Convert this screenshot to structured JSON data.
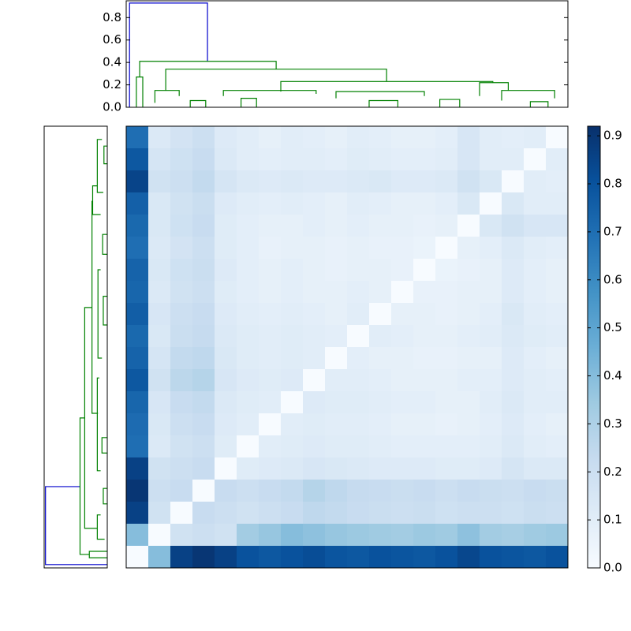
{
  "chart_data": {
    "type": "clustermap",
    "colormap": [
      "#f7fbff",
      "#deebf7",
      "#c6dbef",
      "#9ecae1",
      "#6baed6",
      "#4292c6",
      "#2171b5",
      "#08519c",
      "#08306b"
    ],
    "clim": [
      0,
      0.92
    ],
    "colorbar_ticks": [
      {
        "value": 0,
        "label": "0.0"
      },
      {
        "value": 0.1,
        "label": "0.1"
      },
      {
        "value": 0.2,
        "label": "0.2"
      },
      {
        "value": 0.3,
        "label": "0.3"
      },
      {
        "value": 0.4,
        "label": "0.4"
      },
      {
        "value": 0.5,
        "label": "0.5"
      },
      {
        "value": 0.6,
        "label": "0.6"
      },
      {
        "value": 0.7,
        "label": "0.7"
      },
      {
        "value": 0.8,
        "label": "0.8"
      },
      {
        "value": 0.9,
        "label": "0.9"
      }
    ],
    "matrix": [
      [
        0.7,
        0.13,
        0.17,
        0.2,
        0.12,
        0.1,
        0.08,
        0.1,
        0.09,
        0.08,
        0.1,
        0.09,
        0.08,
        0.08,
        0.09,
        0.15,
        0.1,
        0.09,
        0.1,
        0.0
      ],
      [
        0.78,
        0.16,
        0.19,
        0.22,
        0.13,
        0.1,
        0.09,
        0.1,
        0.1,
        0.09,
        0.11,
        0.1,
        0.09,
        0.09,
        0.1,
        0.15,
        0.1,
        0.1,
        0.0,
        0.1
      ],
      [
        0.85,
        0.18,
        0.2,
        0.24,
        0.16,
        0.13,
        0.12,
        0.13,
        0.12,
        0.12,
        0.13,
        0.14,
        0.12,
        0.12,
        0.13,
        0.18,
        0.14,
        0.0,
        0.1,
        0.09
      ],
      [
        0.75,
        0.14,
        0.18,
        0.21,
        0.12,
        0.1,
        0.09,
        0.1,
        0.09,
        0.08,
        0.1,
        0.09,
        0.08,
        0.08,
        0.09,
        0.14,
        0.0,
        0.14,
        0.1,
        0.1
      ],
      [
        0.72,
        0.14,
        0.19,
        0.22,
        0.11,
        0.09,
        0.08,
        0.08,
        0.09,
        0.08,
        0.09,
        0.08,
        0.08,
        0.07,
        0.08,
        0.0,
        0.14,
        0.18,
        0.15,
        0.15
      ],
      [
        0.7,
        0.13,
        0.17,
        0.2,
        0.11,
        0.09,
        0.07,
        0.08,
        0.08,
        0.07,
        0.08,
        0.07,
        0.07,
        0.06,
        0.0,
        0.08,
        0.09,
        0.13,
        0.1,
        0.09
      ],
      [
        0.74,
        0.14,
        0.19,
        0.21,
        0.12,
        0.09,
        0.08,
        0.09,
        0.08,
        0.07,
        0.08,
        0.08,
        0.07,
        0.0,
        0.06,
        0.07,
        0.08,
        0.12,
        0.09,
        0.08
      ],
      [
        0.73,
        0.13,
        0.18,
        0.2,
        0.11,
        0.09,
        0.08,
        0.09,
        0.08,
        0.08,
        0.09,
        0.08,
        0.0,
        0.07,
        0.07,
        0.08,
        0.08,
        0.12,
        0.09,
        0.08
      ],
      [
        0.76,
        0.15,
        0.2,
        0.22,
        0.12,
        0.1,
        0.09,
        0.1,
        0.09,
        0.08,
        0.1,
        0.0,
        0.08,
        0.08,
        0.07,
        0.08,
        0.09,
        0.14,
        0.1,
        0.09
      ],
      [
        0.72,
        0.14,
        0.21,
        0.23,
        0.13,
        0.11,
        0.1,
        0.11,
        0.1,
        0.09,
        0.0,
        0.1,
        0.09,
        0.08,
        0.08,
        0.09,
        0.1,
        0.13,
        0.11,
        0.1
      ],
      [
        0.74,
        0.16,
        0.24,
        0.25,
        0.14,
        0.11,
        0.1,
        0.11,
        0.1,
        0.0,
        0.09,
        0.08,
        0.08,
        0.07,
        0.07,
        0.08,
        0.08,
        0.12,
        0.09,
        0.08
      ],
      [
        0.78,
        0.18,
        0.26,
        0.28,
        0.15,
        0.12,
        0.11,
        0.12,
        0.0,
        0.1,
        0.1,
        0.09,
        0.08,
        0.08,
        0.08,
        0.09,
        0.09,
        0.12,
        0.1,
        0.09
      ],
      [
        0.73,
        0.15,
        0.22,
        0.24,
        0.13,
        0.11,
        0.1,
        0.0,
        0.12,
        0.11,
        0.11,
        0.1,
        0.09,
        0.09,
        0.08,
        0.08,
        0.1,
        0.13,
        0.1,
        0.1
      ],
      [
        0.71,
        0.14,
        0.2,
        0.22,
        0.12,
        0.1,
        0.0,
        0.1,
        0.11,
        0.1,
        0.1,
        0.09,
        0.08,
        0.08,
        0.07,
        0.08,
        0.09,
        0.12,
        0.09,
        0.08
      ],
      [
        0.7,
        0.13,
        0.18,
        0.2,
        0.11,
        0.0,
        0.1,
        0.11,
        0.12,
        0.11,
        0.11,
        0.1,
        0.09,
        0.09,
        0.09,
        0.09,
        0.1,
        0.13,
        0.1,
        0.09
      ],
      [
        0.86,
        0.18,
        0.2,
        0.22,
        0.0,
        0.11,
        0.12,
        0.13,
        0.15,
        0.14,
        0.13,
        0.12,
        0.12,
        0.12,
        0.11,
        0.11,
        0.12,
        0.16,
        0.13,
        0.13
      ],
      [
        0.9,
        0.2,
        0.22,
        0.0,
        0.22,
        0.2,
        0.22,
        0.24,
        0.28,
        0.25,
        0.23,
        0.22,
        0.21,
        0.22,
        0.2,
        0.22,
        0.21,
        0.2,
        0.22,
        0.21
      ],
      [
        0.86,
        0.18,
        0.0,
        0.22,
        0.2,
        0.18,
        0.2,
        0.22,
        0.25,
        0.24,
        0.22,
        0.21,
        0.2,
        0.21,
        0.19,
        0.2,
        0.2,
        0.19,
        0.21,
        0.2
      ],
      [
        0.4,
        0.0,
        0.18,
        0.2,
        0.18,
        0.33,
        0.36,
        0.4,
        0.38,
        0.36,
        0.35,
        0.34,
        0.33,
        0.35,
        0.34,
        0.38,
        0.33,
        0.32,
        0.34,
        0.35
      ],
      [
        0.0,
        0.4,
        0.86,
        0.9,
        0.86,
        0.8,
        0.78,
        0.8,
        0.82,
        0.79,
        0.78,
        0.8,
        0.79,
        0.78,
        0.8,
        0.84,
        0.8,
        0.79,
        0.78,
        0.8
      ]
    ],
    "dendrogram": {
      "xlim": [
        0,
        20
      ],
      "ylim": [
        0,
        0.95
      ],
      "yticks": [
        {
          "value": 0,
          "label": "0.0"
        },
        {
          "value": 0.2,
          "label": "0.2"
        },
        {
          "value": 0.4,
          "label": "0.4"
        },
        {
          "value": 0.6,
          "label": "0.6"
        },
        {
          "value": 0.8,
          "label": "0.8"
        }
      ],
      "links": [
        {
          "x": [
            0.15,
            0.15,
            3.68,
            3.68
          ],
          "y": [
            0,
            0.93,
            0.93,
            0.41
          ],
          "color": "#0000cc"
        },
        {
          "x": [
            0.61,
            0.61,
            6.79,
            6.79
          ],
          "y": [
            0.27,
            0.41,
            0.41,
            0.34
          ],
          "color": "#008000"
        },
        {
          "x": [
            0.46,
            0.46,
            0.75,
            0.75
          ],
          "y": [
            0,
            0.27,
            0.27,
            0
          ],
          "color": "#008000"
        },
        {
          "x": [
            1.79,
            1.79,
            11.79,
            11.79
          ],
          "y": [
            0.15,
            0.34,
            0.34,
            0.23
          ],
          "color": "#008000"
        },
        {
          "x": [
            1.3,
            1.3,
            2.4,
            2.4
          ],
          "y": [
            0.04,
            0.15,
            0.15,
            0.1
          ],
          "color": "#008000"
        },
        {
          "x": [
            7.0,
            7.0,
            16.6,
            16.6
          ],
          "y": [
            0.14,
            0.23,
            0.23,
            0.22
          ],
          "color": "#008000"
        },
        {
          "x": [
            4.4,
            4.4,
            8.6,
            8.6
          ],
          "y": [
            0.1,
            0.15,
            0.15,
            0.12
          ],
          "color": "#008000"
        },
        {
          "x": [
            9.5,
            9.5,
            13.5,
            13.5
          ],
          "y": [
            0.08,
            0.14,
            0.14,
            0.1
          ],
          "color": "#008000"
        },
        {
          "x": [
            16.0,
            16.0,
            17.3,
            17.3
          ],
          "y": [
            0.1,
            0.22,
            0.22,
            0.15
          ],
          "color": "#008000"
        },
        {
          "x": [
            17.0,
            17.0,
            19.4,
            19.4
          ],
          "y": [
            0.06,
            0.15,
            0.15,
            0.08
          ],
          "color": "#008000"
        },
        {
          "x": [
            2.9,
            2.9,
            3.6,
            3.6
          ],
          "y": [
            0,
            0.06,
            0.06,
            0
          ],
          "color": "#008000"
        },
        {
          "x": [
            5.2,
            5.2,
            5.9,
            5.9
          ],
          "y": [
            0,
            0.08,
            0.08,
            0
          ],
          "color": "#008000"
        },
        {
          "x": [
            11.0,
            11.0,
            12.3,
            12.3
          ],
          "y": [
            0,
            0.06,
            0.06,
            0
          ],
          "color": "#008000"
        },
        {
          "x": [
            14.2,
            14.2,
            15.1,
            15.1
          ],
          "y": [
            0,
            0.07,
            0.07,
            0
          ],
          "color": "#008000"
        },
        {
          "x": [
            18.3,
            18.3,
            19.1,
            19.1
          ],
          "y": [
            0,
            0.05,
            0.05,
            0
          ],
          "color": "#008000"
        }
      ]
    }
  }
}
